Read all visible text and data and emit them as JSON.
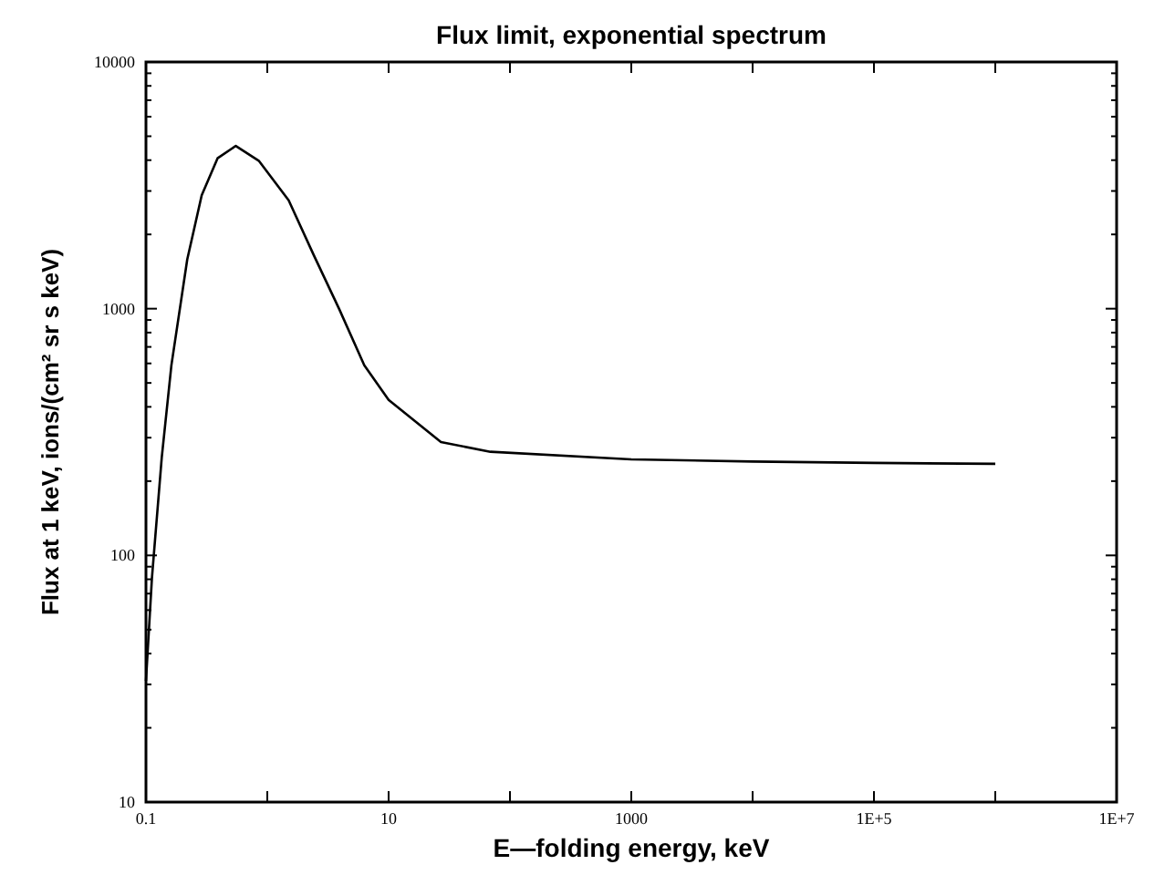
{
  "chart_data": {
    "type": "line",
    "title": "Flux limit, exponential spectrum",
    "xlabel": "E—folding energy, keV",
    "ylabel": "Flux at 1 keV, ions/(cm² sr s keV)",
    "log": "xy",
    "grid": false,
    "marker": "none",
    "line_style": "solid",
    "xlim": [
      0.1,
      10000000
    ],
    "ylim": [
      10,
      10000
    ],
    "xticks": [
      0.1,
      {
        "value": 1,
        "label": null
      },
      10,
      {
        "value": 100,
        "label": null
      },
      1000,
      {
        "value": 10000,
        "label": null
      },
      {
        "value": 100000,
        "label": "1E+5"
      },
      {
        "value": 1000000,
        "label": null
      },
      {
        "value": 10000000,
        "label": "1E+7"
      }
    ],
    "yticks": [
      10,
      {
        "value": 20,
        "label": null
      },
      {
        "value": 30,
        "label": null
      },
      {
        "value": 40,
        "label": null
      },
      {
        "value": 50,
        "label": null
      },
      {
        "value": 60,
        "label": null
      },
      {
        "value": 70,
        "label": null
      },
      {
        "value": 80,
        "label": null
      },
      {
        "value": 90,
        "label": null
      },
      100,
      {
        "value": 200,
        "label": null
      },
      {
        "value": 300,
        "label": null
      },
      {
        "value": 400,
        "label": null
      },
      {
        "value": 500,
        "label": null
      },
      {
        "value": 600,
        "label": null
      },
      {
        "value": 700,
        "label": null
      },
      {
        "value": 800,
        "label": null
      },
      {
        "value": 900,
        "label": null
      },
      1000,
      {
        "value": 2000,
        "label": null
      },
      {
        "value": 3000,
        "label": null
      },
      {
        "value": 4000,
        "label": null
      },
      {
        "value": 5000,
        "label": null
      },
      {
        "value": 6000,
        "label": null
      },
      {
        "value": 7000,
        "label": null
      },
      {
        "value": 8000,
        "label": null
      },
      {
        "value": 9000,
        "label": null
      },
      10000
    ],
    "series": [
      {
        "color": "#000000",
        "x": [
          0.1,
          0.112,
          0.135,
          0.162,
          0.219,
          0.288,
          0.389,
          0.55,
          0.85,
          1.5,
          2.4,
          3.9,
          6.3,
          10,
          27,
          69,
          1000,
          10000,
          100000,
          1000000
        ],
        "values": [
          31,
          81,
          250,
          589,
          1585,
          2880,
          4070,
          4570,
          3980,
          2750,
          1660,
          1000,
          590,
          427,
          288,
          263,
          245,
          240,
          237,
          235
        ]
      }
    ]
  }
}
